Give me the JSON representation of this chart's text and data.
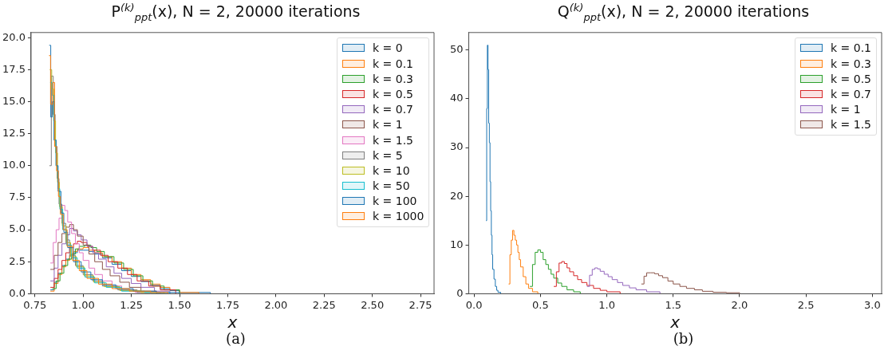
{
  "chart_data": [
    {
      "type": "step",
      "title": "P$^{(k)}$$_{ppt}$(x), N = 2, 20000 iterations",
      "xlabel": "x",
      "annotations": [
        "(a)"
      ],
      "legend": "top right",
      "grid": false,
      "xlim": [
        0.73,
        2.82
      ],
      "ylim": [
        0,
        20.4
      ],
      "xticks": [
        0.75,
        {
          "value": 1,
          "label": "1.00"
        },
        1.25,
        {
          "value": 1.5,
          "label": "1.50"
        },
        1.75,
        {
          "value": 2,
          "label": "2.00"
        },
        2.25,
        {
          "value": 2.5,
          "label": "2.50"
        },
        2.75
      ],
      "yticks": [
        {
          "value": 0,
          "label": "0.0"
        },
        2.5,
        {
          "value": 5,
          "label": "5.0"
        },
        7.5,
        {
          "value": 10,
          "label": "10.0"
        },
        12.5,
        {
          "value": 15,
          "label": "15.0"
        },
        17.5,
        {
          "value": 20,
          "label": "20.0"
        }
      ],
      "series": [
        {
          "name": "k = 0",
          "color": "#1f77b4",
          "x": [
            0.83,
            0.85,
            0.87,
            0.89,
            0.91,
            0.93,
            0.95,
            0.97,
            1.0,
            1.03,
            1.06,
            1.1,
            1.15,
            1.2,
            1.25,
            1.3,
            1.35,
            1.4,
            1.45,
            1.5,
            1.66
          ],
          "values": [
            0.3,
            0.9,
            1.6,
            2.2,
            2.7,
            3.0,
            3.2,
            3.4,
            3.4,
            3.3,
            3.1,
            2.8,
            2.3,
            1.8,
            1.35,
            0.95,
            0.65,
            0.4,
            0.25,
            0.1,
            0
          ]
        },
        {
          "name": "k = 0.1",
          "color": "#ff7f0e",
          "x": [
            0.83,
            0.85,
            0.87,
            0.89,
            0.91,
            0.93,
            0.95,
            0.97,
            1.0,
            1.03,
            1.06,
            1.1,
            1.15,
            1.2,
            1.25,
            1.3,
            1.35,
            1.4,
            1.45,
            1.5,
            1.6
          ],
          "values": [
            0.2,
            0.8,
            1.5,
            2.1,
            2.6,
            3.0,
            3.3,
            3.5,
            3.6,
            3.4,
            3.2,
            2.9,
            2.5,
            2.0,
            1.5,
            1.1,
            0.75,
            0.5,
            0.3,
            0.1,
            0
          ]
        },
        {
          "name": "k = 0.3",
          "color": "#2ca02c",
          "x": [
            0.84,
            0.86,
            0.88,
            0.9,
            0.92,
            0.94,
            0.96,
            0.98,
            1.01,
            1.04,
            1.07,
            1.11,
            1.16,
            1.21,
            1.26,
            1.31,
            1.36,
            1.42,
            1.5
          ],
          "values": [
            0.4,
            1.0,
            1.6,
            2.2,
            2.7,
            3.1,
            3.5,
            3.7,
            3.8,
            3.6,
            3.3,
            2.9,
            2.4,
            1.9,
            1.4,
            1.0,
            0.6,
            0.3,
            0
          ]
        },
        {
          "name": "k = 0.5",
          "color": "#d62728",
          "x": [
            0.83,
            0.85,
            0.87,
            0.89,
            0.91,
            0.93,
            0.95,
            0.97,
            0.99,
            1.02,
            1.05,
            1.09,
            1.13,
            1.18,
            1.23,
            1.28,
            1.34,
            1.4,
            1.48
          ],
          "values": [
            0.5,
            1.2,
            1.9,
            2.6,
            3.2,
            3.6,
            3.9,
            4.1,
            4.0,
            3.7,
            3.4,
            3.0,
            2.5,
            2.0,
            1.5,
            1.0,
            0.6,
            0.3,
            0
          ]
        },
        {
          "name": "k = 0.7",
          "color": "#9467bd",
          "x": [
            0.83,
            0.85,
            0.87,
            0.89,
            0.91,
            0.93,
            0.95,
            0.97,
            0.99,
            1.02,
            1.05,
            1.08,
            1.12,
            1.16,
            1.2,
            1.25,
            1.3,
            1.37,
            1.45
          ],
          "values": [
            1.0,
            2.0,
            3.0,
            3.9,
            4.6,
            5.1,
            4.9,
            4.6,
            4.2,
            3.7,
            3.2,
            2.7,
            2.1,
            1.6,
            1.2,
            0.8,
            0.5,
            0.2,
            0
          ]
        },
        {
          "name": "k = 1",
          "color": "#8c564b",
          "x": [
            0.83,
            0.85,
            0.87,
            0.89,
            0.91,
            0.93,
            0.95,
            0.97,
            1.0,
            1.03,
            1.06,
            1.1,
            1.14,
            1.19,
            1.24,
            1.3,
            1.38
          ],
          "values": [
            1.9,
            3.0,
            4.0,
            4.7,
            5.2,
            5.4,
            5.0,
            4.5,
            3.8,
            3.1,
            2.5,
            1.9,
            1.4,
            0.9,
            0.5,
            0.2,
            0
          ]
        },
        {
          "name": "k = 1.5",
          "color": "#e377c2",
          "x": [
            0.83,
            0.845,
            0.86,
            0.875,
            0.89,
            0.905,
            0.92,
            0.94,
            0.96,
            0.98,
            1.0,
            1.03,
            1.06,
            1.1,
            1.15,
            1.2,
            1.27,
            1.35
          ],
          "values": [
            2.4,
            4.0,
            5.0,
            5.9,
            6.9,
            6.5,
            5.6,
            4.7,
            3.9,
            3.2,
            2.6,
            2.0,
            1.5,
            1.0,
            0.6,
            0.3,
            0.1,
            0
          ]
        },
        {
          "name": "k = 5",
          "color": "#7f7f7f",
          "x": [
            0.825,
            0.835,
            0.845,
            0.855,
            0.865,
            0.875,
            0.89,
            0.91,
            0.93,
            0.96,
            1.0,
            1.05,
            1.1,
            1.18,
            1.28,
            1.4
          ],
          "values": [
            10,
            17,
            14,
            11.5,
            9,
            7,
            5.5,
            4.2,
            3.0,
            2.2,
            1.5,
            1.0,
            0.6,
            0.3,
            0.1,
            0
          ]
        },
        {
          "name": "k = 10",
          "color": "#bcbd22",
          "x": [
            0.827,
            0.837,
            0.847,
            0.857,
            0.867,
            0.877,
            0.892,
            0.912,
            0.935,
            0.965,
            1.005,
            1.055,
            1.11,
            1.19,
            1.3,
            1.42
          ],
          "values": [
            17.5,
            16,
            13.5,
            11,
            8.7,
            6.8,
            5.3,
            4.0,
            2.9,
            2.1,
            1.4,
            0.9,
            0.55,
            0.25,
            0.1,
            0
          ]
        },
        {
          "name": "k = 50",
          "color": "#17becf",
          "x": [
            0.829,
            0.839,
            0.849,
            0.859,
            0.869,
            0.879,
            0.894,
            0.914,
            0.94,
            0.97,
            1.01,
            1.06,
            1.12,
            1.2,
            1.32,
            1.45
          ],
          "values": [
            16.5,
            15.5,
            12,
            10,
            8.2,
            6.6,
            5.0,
            3.8,
            2.8,
            2.0,
            1.3,
            0.85,
            0.5,
            0.2,
            0.1,
            0
          ]
        },
        {
          "name": "k = 100",
          "color": "#1f77b4",
          "x": [
            0.824,
            0.832,
            0.84,
            0.85,
            0.86,
            0.87,
            0.885,
            0.9,
            0.92,
            0.95,
            0.99,
            1.04,
            1.1,
            1.17,
            1.26,
            1.38,
            1.5
          ],
          "values": [
            19.4,
            13.8,
            15,
            12,
            10,
            8,
            6.3,
            4.8,
            3.6,
            2.5,
            1.7,
            1.1,
            0.7,
            0.4,
            0.2,
            0.1,
            0
          ]
        },
        {
          "name": "k = 1000",
          "color": "#ff7f0e",
          "x": [
            0.823,
            0.831,
            0.842,
            0.852,
            0.862,
            0.872,
            0.882,
            0.897,
            0.917,
            0.945,
            0.98,
            1.02,
            1.08,
            1.15,
            1.24,
            1.35,
            1.44
          ],
          "values": [
            18.6,
            14.8,
            16.5,
            11.5,
            9.6,
            7.6,
            6.2,
            5.0,
            3.7,
            2.6,
            1.8,
            1.2,
            0.75,
            0.4,
            0.2,
            0.1,
            0
          ]
        }
      ]
    },
    {
      "type": "step",
      "title": "Q$^{(k)}$$_{ppt}$(x), N = 2, 20000 iterations",
      "xlabel": "x",
      "annotations": [
        "(b)"
      ],
      "legend": "top right",
      "grid": false,
      "xlim": [
        -0.04,
        3.07
      ],
      "ylim": [
        0,
        53.6
      ],
      "xticks": [
        {
          "value": 0,
          "label": "0.0"
        },
        0.5,
        {
          "value": 1,
          "label": "1.0"
        },
        1.5,
        {
          "value": 2,
          "label": "2.0"
        },
        2.5,
        {
          "value": 3,
          "label": "3.0"
        }
      ],
      "yticks": [
        0,
        10,
        20,
        30,
        40,
        50
      ],
      "series": [
        {
          "name": "k = 0.1",
          "color": "#1f77b4",
          "x": [
            0.09,
            0.095,
            0.1,
            0.105,
            0.11,
            0.115,
            0.12,
            0.125,
            0.13,
            0.135,
            0.14,
            0.15,
            0.16,
            0.17,
            0.18,
            0.2
          ],
          "values": [
            15,
            38,
            51,
            46,
            35,
            31,
            23,
            17,
            12,
            8,
            5,
            3,
            1.5,
            0.7,
            0.3,
            0
          ]
        },
        {
          "name": "k = 0.3",
          "color": "#ff7f0e",
          "x": [
            0.26,
            0.27,
            0.28,
            0.29,
            0.3,
            0.31,
            0.32,
            0.33,
            0.34,
            0.35,
            0.37,
            0.39,
            0.41,
            0.44,
            0.48
          ],
          "values": [
            2,
            8,
            11,
            13,
            12,
            11,
            10,
            8.5,
            7,
            5.5,
            3.5,
            2,
            1.1,
            0.4,
            0
          ]
        },
        {
          "name": "k = 0.5",
          "color": "#2ca02c",
          "x": [
            0.42,
            0.44,
            0.46,
            0.48,
            0.5,
            0.52,
            0.54,
            0.56,
            0.58,
            0.6,
            0.63,
            0.66,
            0.7,
            0.75,
            0.8
          ],
          "values": [
            1.5,
            6,
            8.5,
            9,
            8.5,
            7,
            6,
            5,
            4,
            3.2,
            2.2,
            1.5,
            0.8,
            0.4,
            0
          ]
        },
        {
          "name": "k = 0.7",
          "color": "#d62728",
          "x": [
            0.6,
            0.62,
            0.64,
            0.66,
            0.68,
            0.7,
            0.72,
            0.75,
            0.78,
            0.81,
            0.85,
            0.9,
            0.95,
            1.0,
            1.1
          ],
          "values": [
            1.5,
            4.5,
            6.3,
            6.6,
            6.2,
            5.3,
            4.5,
            3.7,
            2.9,
            2.3,
            1.7,
            1.1,
            0.7,
            0.4,
            0
          ]
        },
        {
          "name": "k = 1",
          "color": "#9467bd",
          "x": [
            0.85,
            0.87,
            0.89,
            0.91,
            0.93,
            0.95,
            0.98,
            1.01,
            1.04,
            1.08,
            1.12,
            1.17,
            1.22,
            1.3,
            1.4
          ],
          "values": [
            1.5,
            3.8,
            5,
            5.3,
            5.1,
            4.6,
            4.0,
            3.5,
            2.9,
            2.3,
            1.7,
            1.2,
            0.8,
            0.4,
            0
          ]
        },
        {
          "name": "k = 1.5",
          "color": "#8c564b",
          "x": [
            1.26,
            1.28,
            1.3,
            1.33,
            1.36,
            1.39,
            1.42,
            1.46,
            1.5,
            1.55,
            1.6,
            1.66,
            1.72,
            1.8,
            1.9,
            2.0
          ],
          "values": [
            2,
            3.6,
            4.3,
            4.3,
            4.1,
            3.7,
            3.3,
            2.6,
            2.0,
            1.5,
            1.1,
            0.8,
            0.5,
            0.3,
            0.2,
            0
          ]
        }
      ]
    }
  ]
}
